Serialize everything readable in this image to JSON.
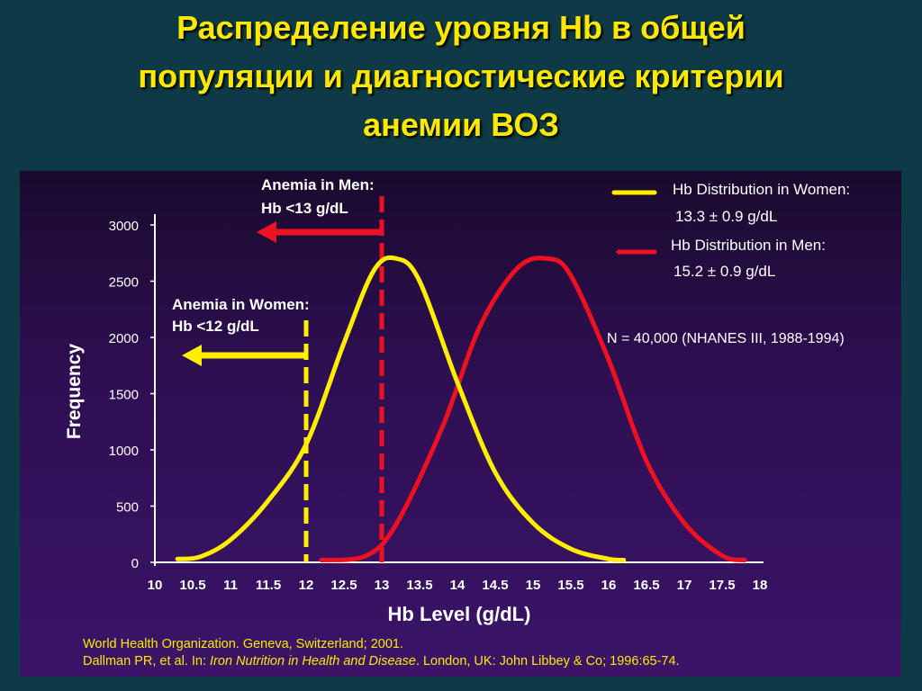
{
  "slide": {
    "title_lines": [
      "Распределение уровня Hb  в общей",
      "популяции и диагностические критерии",
      "анемии ВОЗ"
    ]
  },
  "colors": {
    "women": "#ffee00",
    "men": "#ee1122",
    "text": "#ffffff",
    "citation": "#ffe800"
  },
  "chart_data": {
    "type": "line",
    "xlabel": "Hb Level (g/dL)",
    "ylabel": "Frequency",
    "xlim": [
      10,
      18
    ],
    "ylim": [
      0,
      3000
    ],
    "x_ticks": [
      "10",
      "10.5",
      "11",
      "11.5",
      "12",
      "12.5",
      "13",
      "13.5",
      "14",
      "14.5",
      "15",
      "15.5",
      "16",
      "16.5",
      "17",
      "17.5",
      "18"
    ],
    "y_ticks": [
      "0",
      "500",
      "1000",
      "1500",
      "2000",
      "2500",
      "3000"
    ],
    "series": [
      {
        "name": "Hb Distribution in Women:",
        "stats": "13.3 ± 0.9 g/dL",
        "color": "#ffee00",
        "x": [
          10.3,
          10.6,
          11.0,
          11.5,
          12.0,
          12.5,
          12.9,
          13.2,
          13.5,
          14.0,
          14.5,
          15.0,
          15.5,
          16.0,
          16.2
        ],
        "y": [
          30,
          50,
          200,
          550,
          1050,
          1950,
          2600,
          2700,
          2500,
          1600,
          800,
          350,
          120,
          30,
          20
        ]
      },
      {
        "name": "Hb Distribution in Men:",
        "stats": "15.2 ± 0.9 g/dL",
        "color": "#ee1122",
        "x": [
          12.2,
          12.8,
          13.2,
          13.8,
          14.3,
          14.8,
          15.2,
          15.5,
          16.0,
          16.5,
          17.0,
          17.5,
          17.8
        ],
        "y": [
          20,
          60,
          350,
          1200,
          2100,
          2620,
          2700,
          2550,
          1800,
          900,
          350,
          60,
          20
        ]
      }
    ],
    "annotations": [
      {
        "label_lines": [
          "Anemia in Men:",
          "Hb <13 g/dL"
        ],
        "threshold": 13,
        "color": "#ee1122"
      },
      {
        "label_lines": [
          "Anemia in Women:",
          "Hb <12 g/dL"
        ],
        "threshold": 12,
        "color": "#ffee00"
      }
    ],
    "note": "N = 40,000 (NHANES III, 1988-1994)"
  },
  "citation": {
    "line1": "World Health Organization. Geneva, Switzerland; 2001.",
    "line2_prefix": "Dallman PR, et al. In: ",
    "line2_italic": "Iron Nutrition in Health and Disease",
    "line2_suffix": ". London, UK: John Libbey & Co; 1996:65-74."
  }
}
